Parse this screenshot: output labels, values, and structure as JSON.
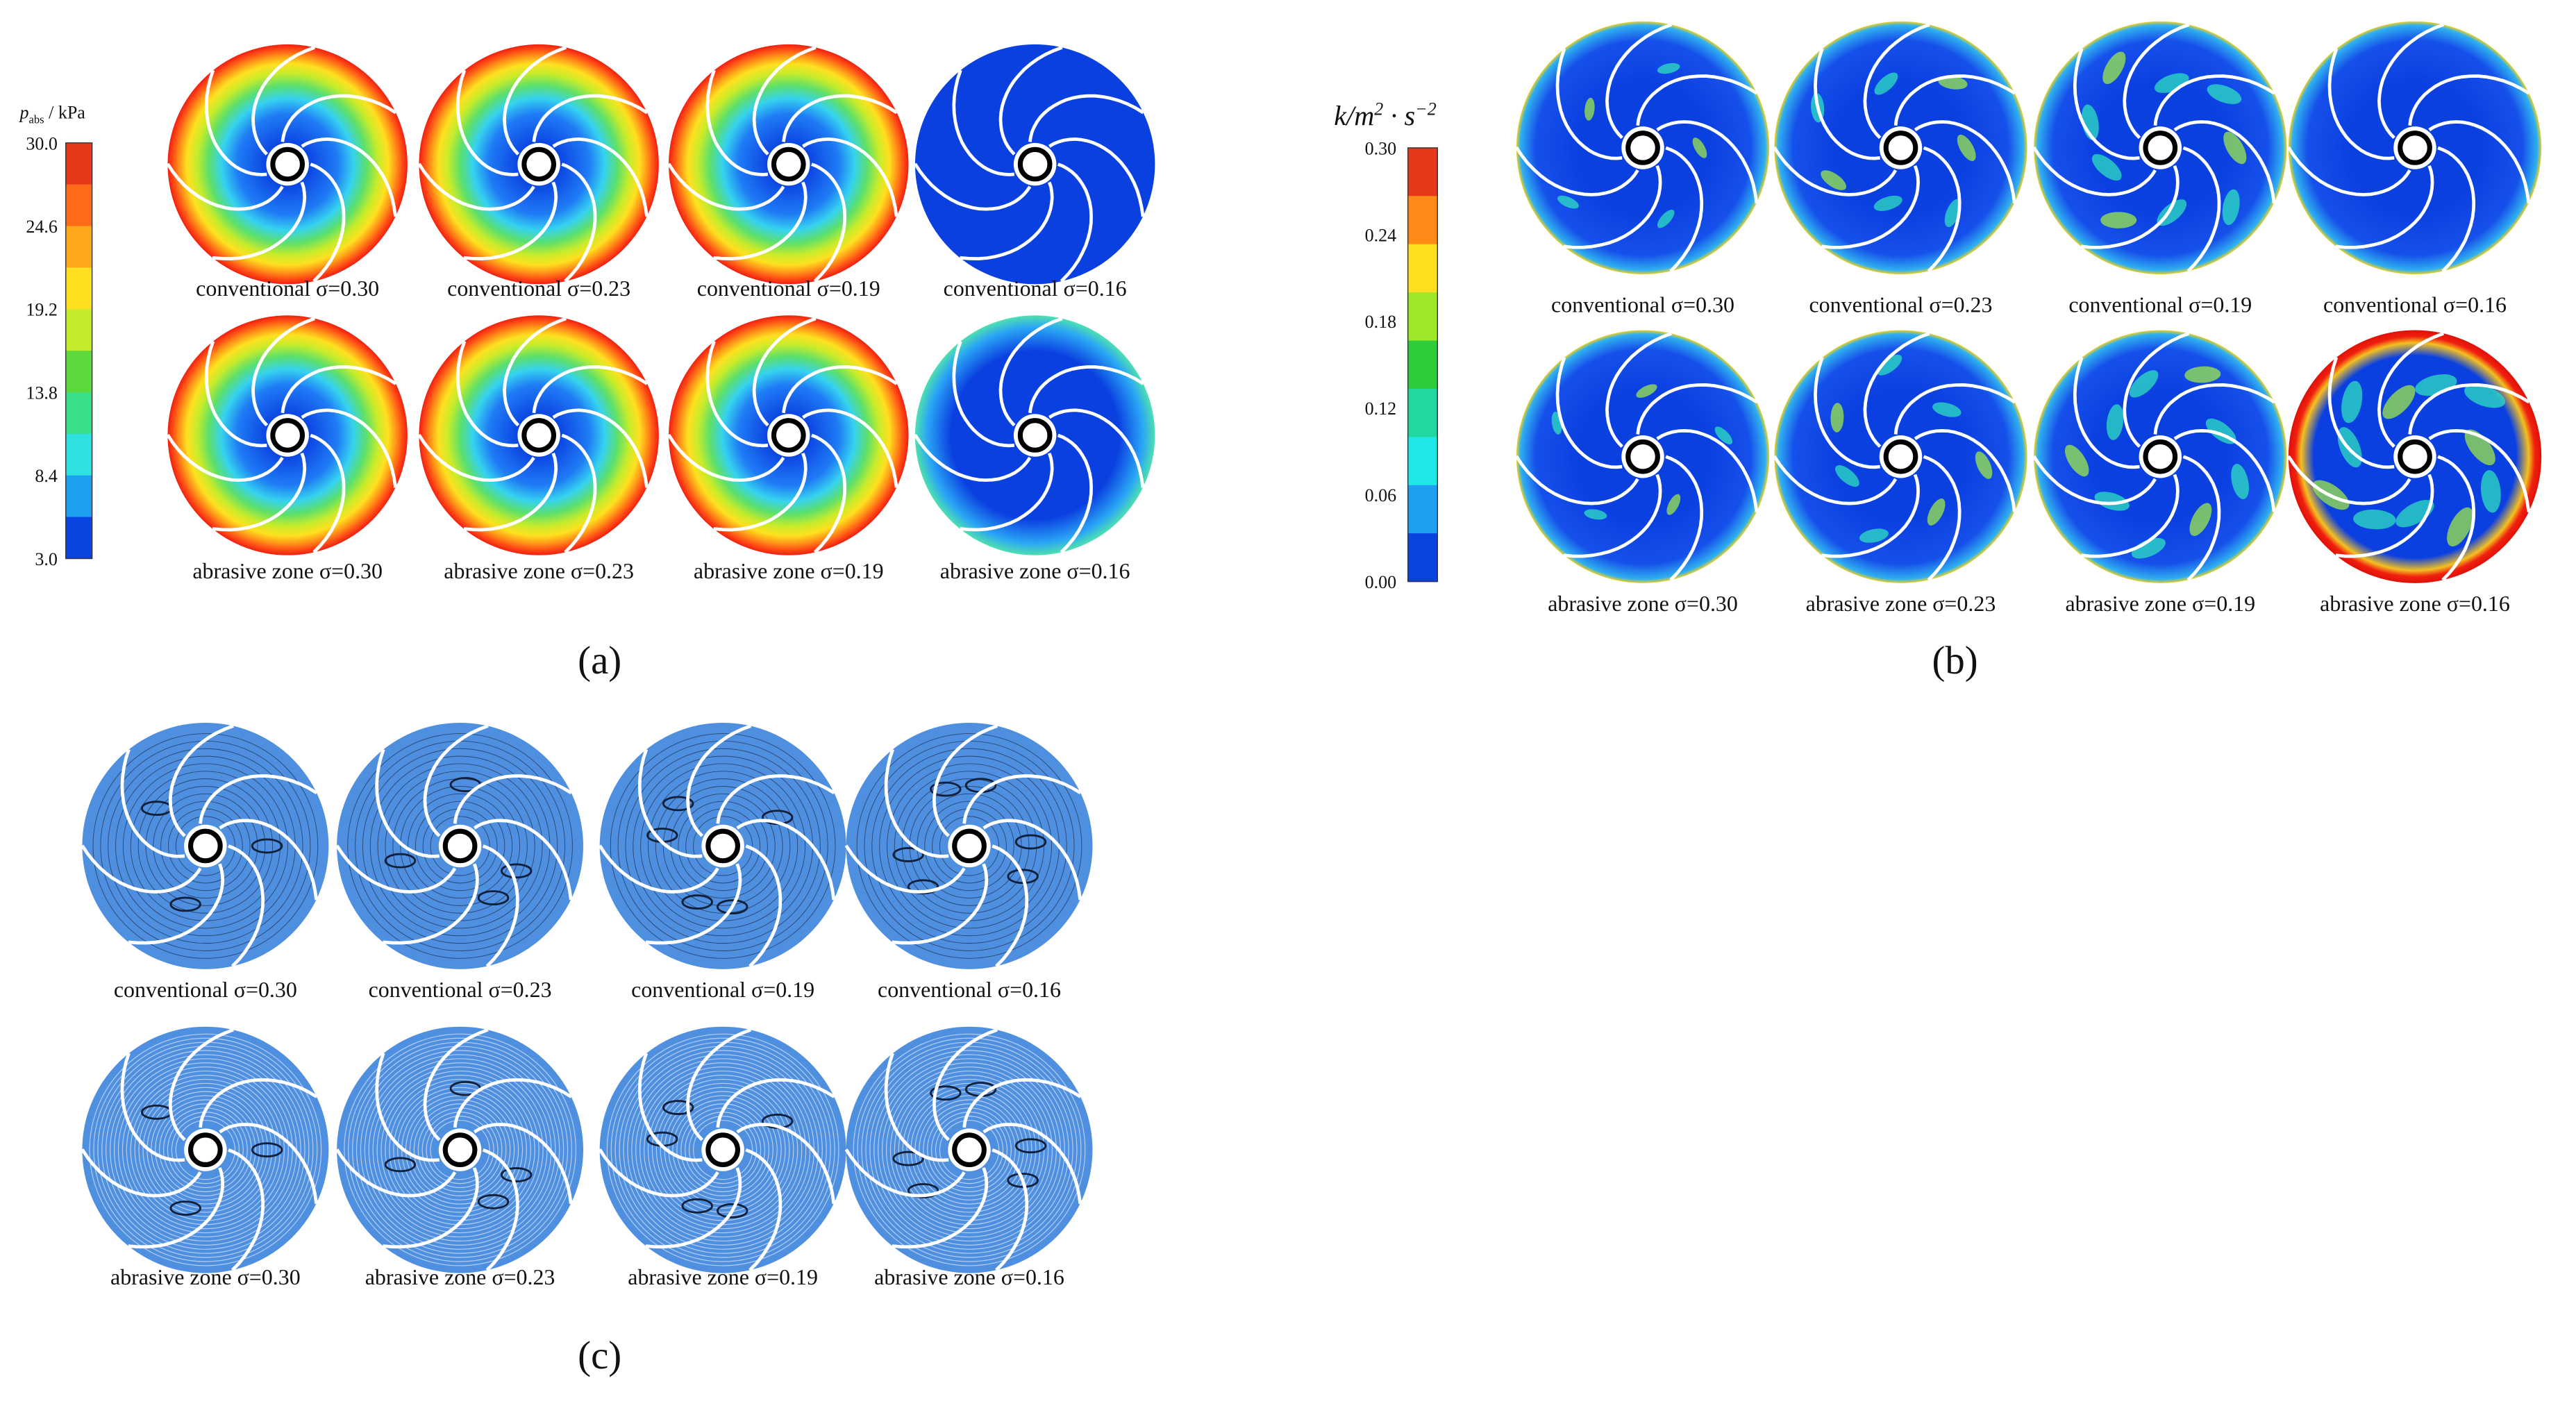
{
  "panels": [
    {
      "label": "(a)",
      "colorbar": {
        "title": {
          "symbol": "p",
          "subscript": "abs",
          "unit": " / kPa"
        },
        "ticks": [
          "30.0",
          "24.6",
          "19.2",
          "13.8",
          "8.4",
          "3.0"
        ]
      },
      "captions": [
        [
          "conventional σ=0.30",
          "conventional σ=0.23",
          "conventional σ=0.19",
          "conventional σ=0.16"
        ],
        [
          "abrasive zone σ=0.30",
          "abrasive zone σ=0.23",
          "abrasive zone σ=0.19",
          "abrasive zone σ=0.16"
        ]
      ]
    },
    {
      "label": "(b)",
      "colorbar": {
        "title": {
          "base": "k/m",
          "sup": "2",
          "base2": " · s",
          "sup2": "−2"
        },
        "ticks": [
          "0.30",
          "0.24",
          "0.18",
          "0.12",
          "0.06",
          "0.00"
        ]
      },
      "captions": [
        [
          "conventional σ=0.30",
          "conventional σ=0.23",
          "conventional σ=0.19",
          "conventional σ=0.16"
        ],
        [
          "abrasive zone σ=0.30",
          "abrasive zone σ=0.23",
          "abrasive zone σ=0.19",
          "abrasive zone σ=0.16"
        ]
      ]
    },
    {
      "label": "(c)",
      "captions": [
        [
          "conventional σ=0.30",
          "conventional σ=0.23",
          "conventional σ=0.19",
          "conventional σ=0.16"
        ],
        [
          "abrasive zone σ=0.30",
          "abrasive zone σ=0.23",
          "abrasive zone σ=0.19",
          "abrasive zone σ=0.16"
        ]
      ]
    }
  ]
}
